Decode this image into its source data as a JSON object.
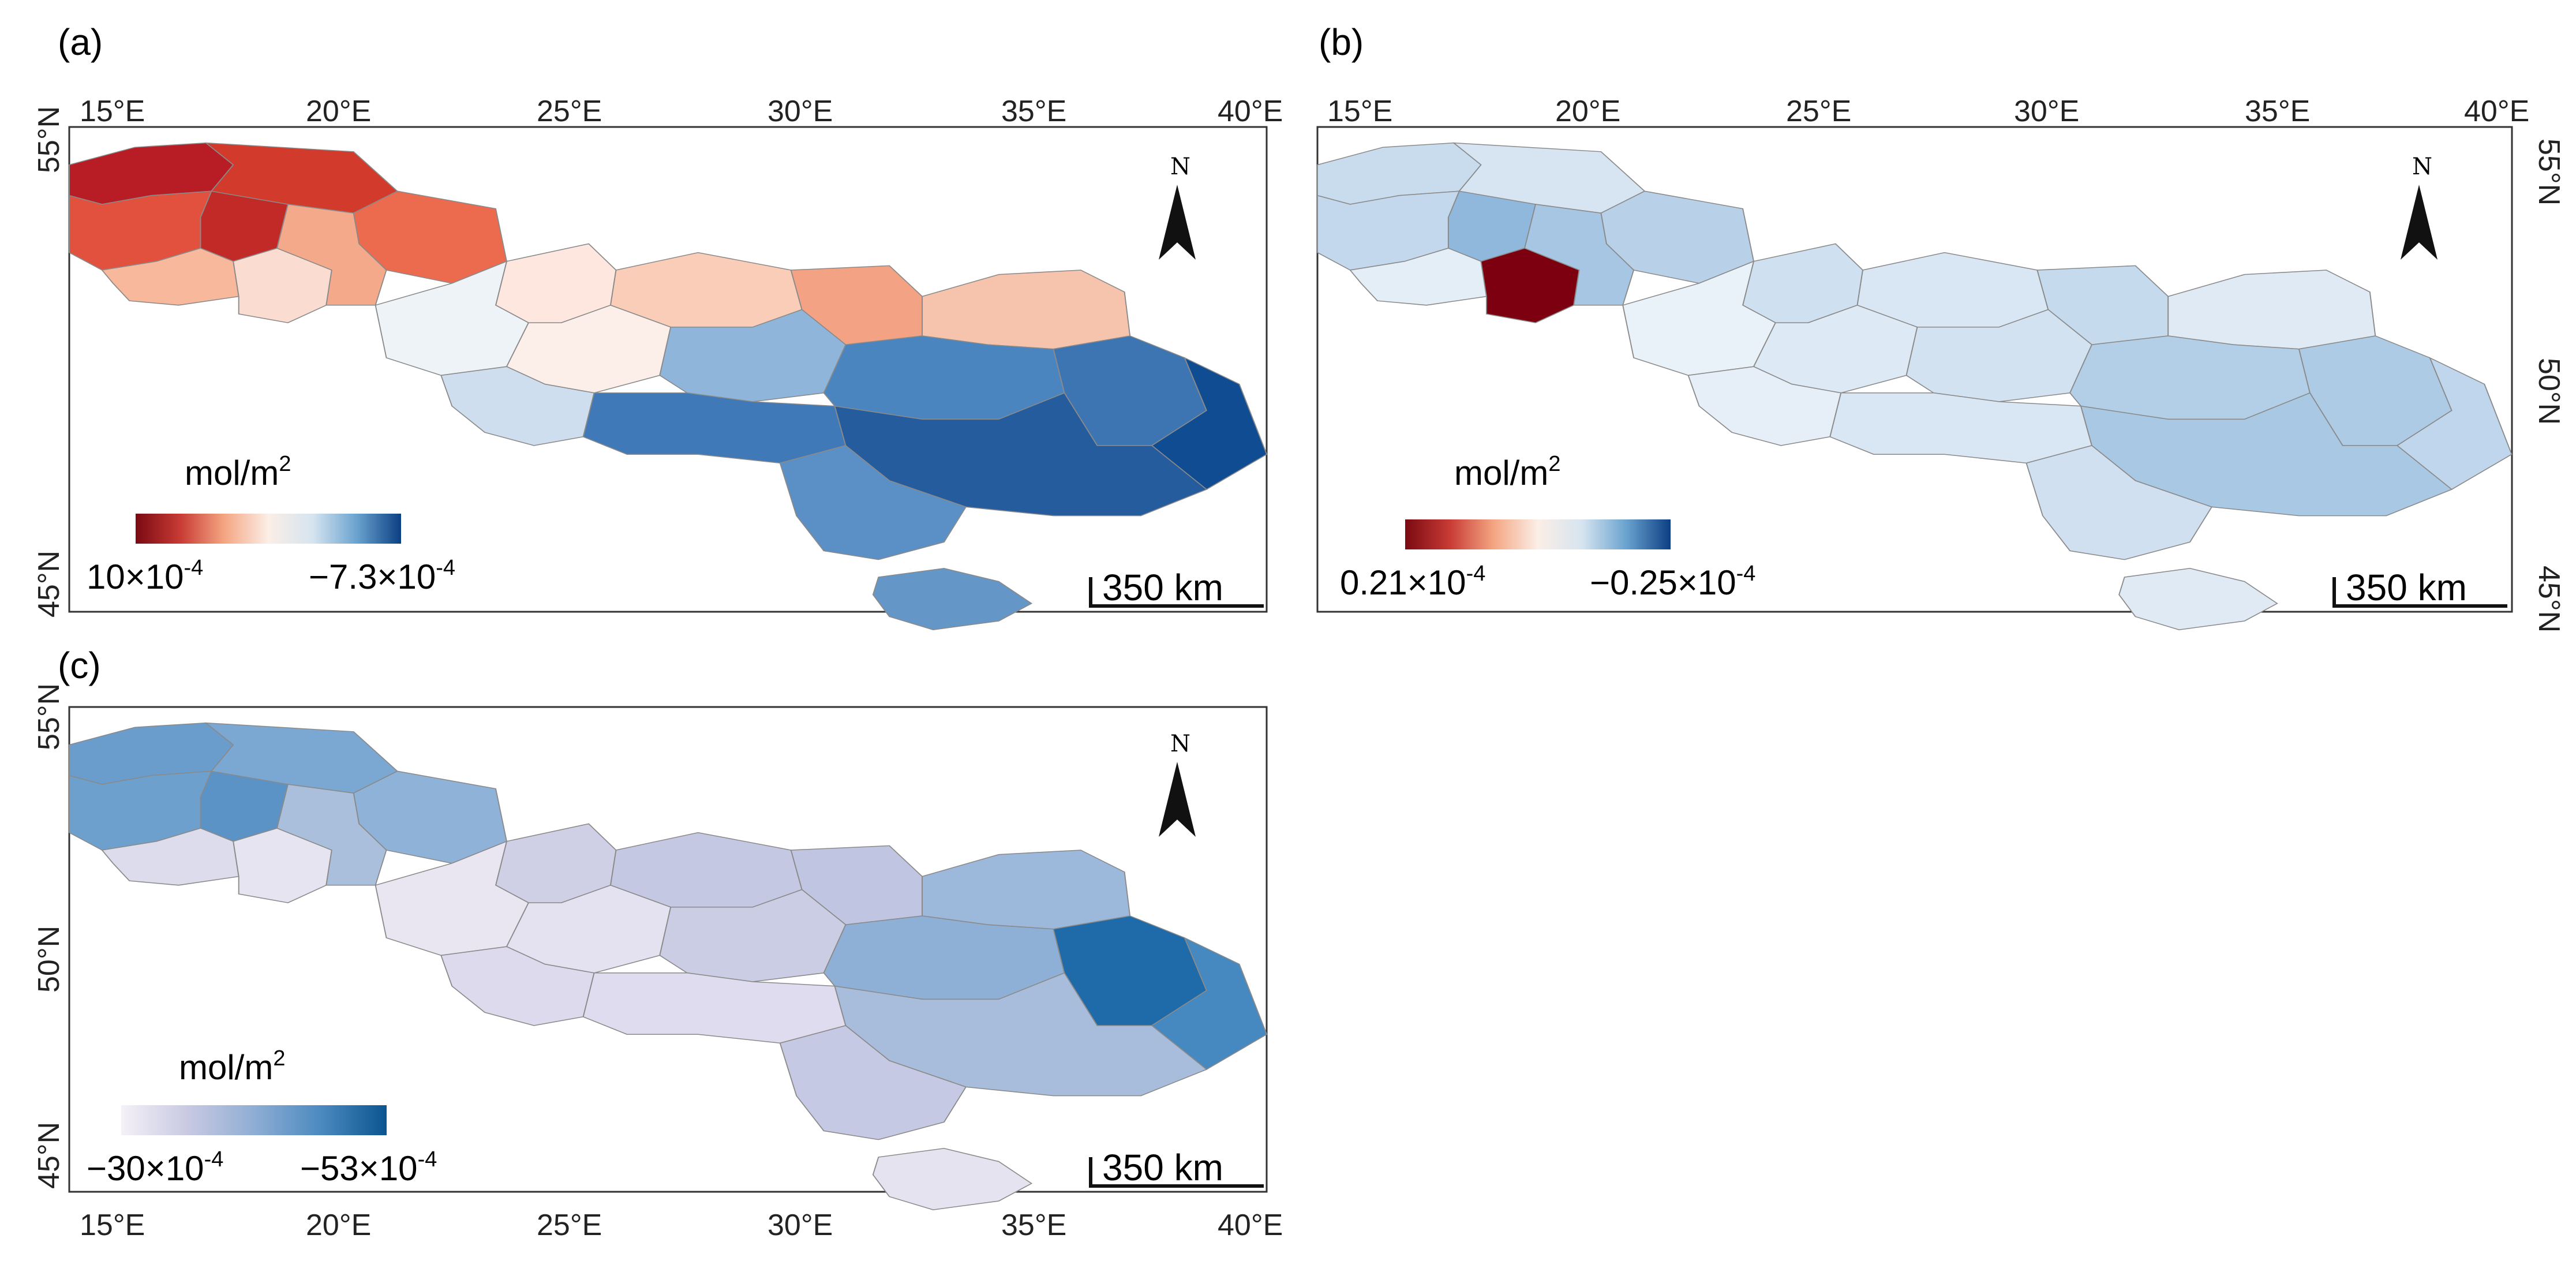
{
  "figure": {
    "panels": [
      {
        "id": "a",
        "label": "(a)",
        "colorbar": {
          "unit_base": "mol/m",
          "unit_exp": "2",
          "colors": [
            "#7a0a12",
            "#c83a34",
            "#f4a582",
            "#fbeee6",
            "#d6e4f0",
            "#6aa3cf",
            "#0b3f83"
          ],
          "min_label": {
            "mant": "10×10",
            "exp": "-4"
          },
          "max_label": {
            "mant": "−7.3×10",
            "exp": "-4"
          }
        },
        "scale_bar": "350 km",
        "north": "N",
        "fills": {
          "pl_n": "#b81d25",
          "pl_n2": "#d23a2c",
          "pl_c": "#c22a28",
          "pl_e": "#ec6b4e",
          "pl_w": "#e2513e",
          "pl_sw": "#f7b89b",
          "pl_s": "#fbdcd0",
          "pl_se": "#f3a98a",
          "ua_nw": "#fde7df",
          "ua_n": "#f9cdb8",
          "ua_ne": "#f6c4ad",
          "ua_nc": "#f3a383",
          "ua_w": "#eef3f8",
          "ua_wc": "#fcefe9",
          "ua_c": "#8fb6da",
          "ua_cs": "#3f79b7",
          "ua_e": "#4a85c0",
          "ua_se": "#245c9e",
          "ua_s": "#5b90c6",
          "ua_sw": "#cfdeee",
          "ua_crimea": "#6596c8",
          "ua_ec": "#3d75b3",
          "ua_far_e": "#0f4c92"
        }
      },
      {
        "id": "b",
        "label": "(b)",
        "colorbar": {
          "unit_base": "mol/m",
          "unit_exp": "2",
          "colors": [
            "#7a0a12",
            "#c83a34",
            "#f4a582",
            "#fbeee6",
            "#d6e4f0",
            "#6aa3cf",
            "#0b3f83"
          ],
          "min_label": {
            "mant": "0.21×10",
            "exp": "-4"
          },
          "max_label": {
            "mant": "−0.25×10",
            "exp": "-4"
          }
        },
        "scale_bar": "350 km",
        "north": "N",
        "fills": {
          "pl_n": "#c9dcee",
          "pl_n2": "#d7e5f2",
          "pl_c": "#8fb8dc",
          "pl_e": "#b8d1e9",
          "pl_w": "#c3d8ec",
          "pl_sw": "#e4eef7",
          "pl_s": "#7d0010",
          "pl_se": "#a6c6e3",
          "ua_nw": "#cfe0f0",
          "ua_n": "#d9e6f3",
          "ua_ne": "#dfeaf5",
          "ua_nc": "#c6daee",
          "ua_w": "#e9f1f9",
          "ua_wc": "#dde9f5",
          "ua_c": "#d2e2f1",
          "ua_cs": "#d9e6f3",
          "ua_e": "#b3cfe8",
          "ua_se": "#a9c8e4",
          "ua_s": "#d0e0f0",
          "ua_sw": "#e6eff8",
          "ua_crimea": "#dfeaf5",
          "ua_ec": "#aecbe6",
          "ua_far_e": "#c0d6ec"
        }
      },
      {
        "id": "c",
        "label": "(c)",
        "colorbar": {
          "unit_base": "mol/m",
          "unit_exp": "2",
          "colors": [
            "#f4f1f8",
            "#c9c9e2",
            "#8faed4",
            "#4c8ac0",
            "#0b5590"
          ],
          "min_label": {
            "mant": "−30×10",
            "exp": "-4"
          },
          "max_label": {
            "mant": "−53×10",
            "exp": "-4"
          }
        },
        "scale_bar": "350 km",
        "north": "N",
        "fills": {
          "pl_n": "#6a9ccc",
          "pl_n2": "#7ba8d3",
          "pl_c": "#5c93c7",
          "pl_e": "#8fb2d8",
          "pl_w": "#6ea0ce",
          "pl_sw": "#dcdcec",
          "pl_s": "#e6e4f0",
          "pl_se": "#aabfdc",
          "ua_nw": "#cfd0e6",
          "ua_n": "#c4c8e2",
          "ua_ne": "#9cb8da",
          "ua_nc": "#c0c6e1",
          "ua_w": "#e9e6f2",
          "ua_wc": "#e4e2f0",
          "ua_c": "#cbcde5",
          "ua_cs": "#dedcee",
          "ua_e": "#8fb0d6",
          "ua_se": "#a8bddc",
          "ua_s": "#c6c9e3",
          "ua_sw": "#dcdaec",
          "ua_crimea": "#e6e3f0",
          "ua_ec": "#1f6aa8",
          "ua_far_e": "#4589c0"
        }
      }
    ],
    "axes": {
      "lon_labels": [
        "15°E",
        "20°E",
        "25°E",
        "30°E",
        "35°E",
        "40°E"
      ],
      "lat_labels": [
        "55°N",
        "50°N",
        "45°N"
      ]
    }
  }
}
